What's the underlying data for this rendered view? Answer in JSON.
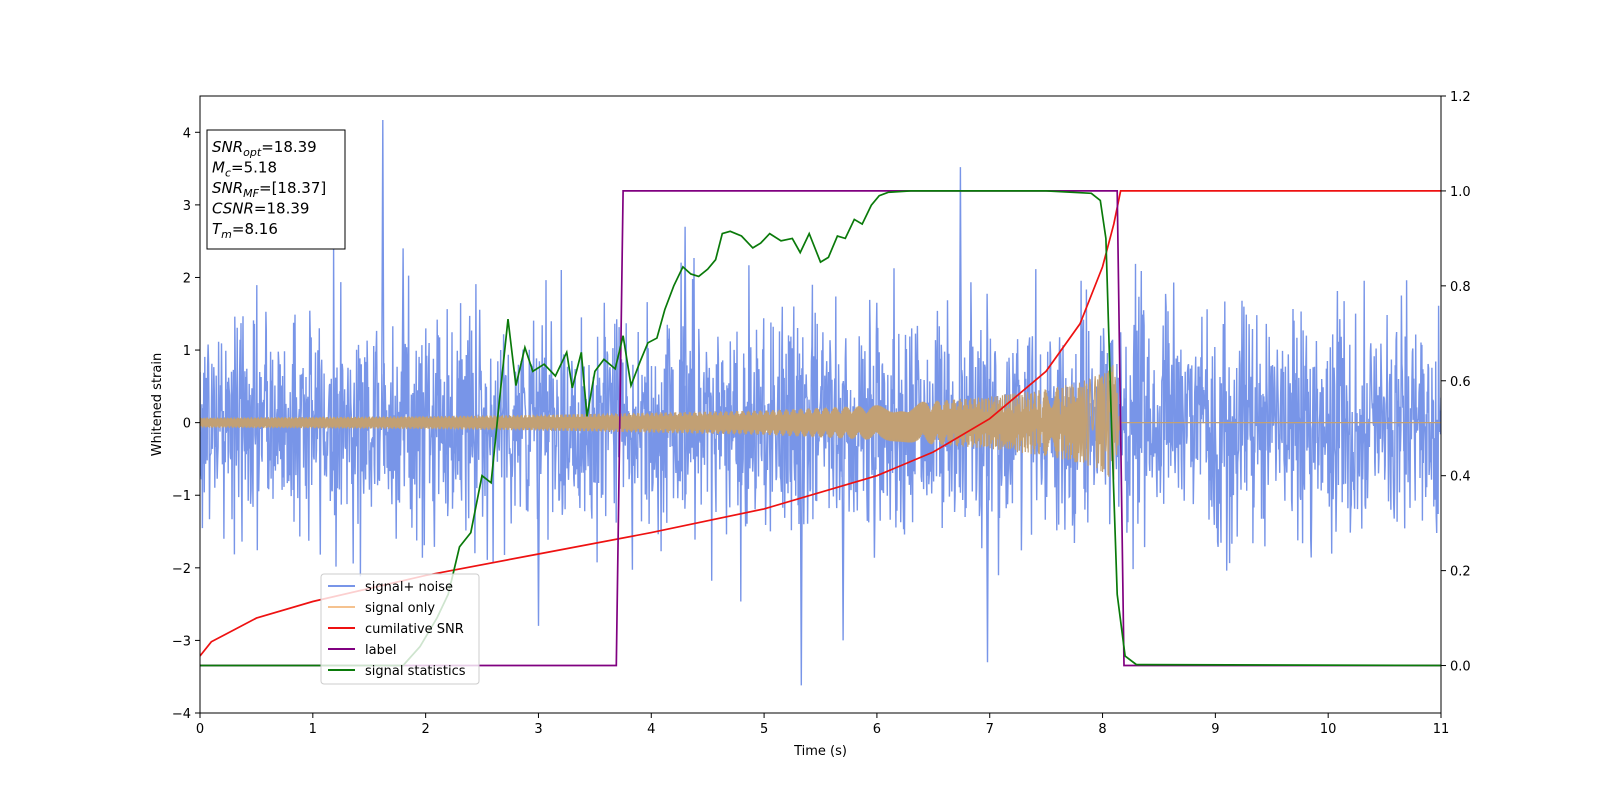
{
  "chart_data": {
    "type": "line",
    "xlabel": "Time (s)",
    "ylabel": "Whitened strain",
    "xlim": [
      0,
      11
    ],
    "ylim": [
      -4,
      4.5
    ],
    "y2lim": [
      -0.1,
      1.2
    ],
    "x_ticks": [
      "0",
      "1",
      "2",
      "3",
      "4",
      "5",
      "6",
      "7",
      "8",
      "9",
      "10",
      "11"
    ],
    "y_ticks": [
      "−4",
      "−3",
      "−2",
      "−1",
      "0",
      "1",
      "2",
      "3",
      "4"
    ],
    "y2_ticks": [
      "0.0",
      "0.2",
      "0.4",
      "0.6",
      "0.8",
      "1.0",
      "1.2"
    ],
    "grid": false,
    "legend_position": "lower-left",
    "info_box": [
      {
        "base": "SNR",
        "sub": "opt",
        "rest": "=18.39"
      },
      {
        "base": "M",
        "sub": "c",
        "rest": "=5.18"
      },
      {
        "base": "SNR",
        "sub": "MF",
        "rest": "=[18.37]"
      },
      {
        "base": "CSNR",
        "sub": "",
        "rest": "=18.39"
      },
      {
        "base": "T",
        "sub": "m",
        "rest": "=8.16"
      }
    ],
    "series": [
      {
        "name": "signal+ noise",
        "axis": "left",
        "color": "#7895e8",
        "kind": "noise",
        "sigma": 0.75,
        "x_range": [
          0,
          11
        ],
        "spikes": [
          [
            1.62,
            4.17
          ],
          [
            5.33,
            -3.62
          ],
          [
            6.74,
            3.52
          ],
          [
            5.7,
            -3.0
          ],
          [
            6.98,
            -3.3
          ],
          [
            3.0,
            -2.8
          ],
          [
            1.8,
            2.4
          ],
          [
            4.3,
            2.7
          ]
        ]
      },
      {
        "name": "signal only",
        "axis": "left",
        "color": "#c2a074",
        "kind": "chirp",
        "merger_time": 8.16,
        "points": [
          [
            0,
            0.07
          ],
          [
            1,
            0.08
          ],
          [
            2,
            0.09
          ],
          [
            3,
            0.11
          ],
          [
            4,
            0.14
          ],
          [
            5,
            0.17
          ],
          [
            6,
            0.24
          ],
          [
            7,
            0.36
          ],
          [
            7.5,
            0.46
          ],
          [
            7.8,
            0.56
          ],
          [
            8.0,
            0.68
          ],
          [
            8.1,
            0.8
          ],
          [
            8.16,
            0.0
          ],
          [
            11,
            0.0
          ]
        ]
      },
      {
        "name": "cumilative SNR",
        "axis": "right",
        "color": "#ee1111",
        "kind": "line",
        "points": [
          [
            0,
            0.02
          ],
          [
            0.1,
            0.05
          ],
          [
            0.5,
            0.1
          ],
          [
            1,
            0.135
          ],
          [
            2,
            0.19
          ],
          [
            3,
            0.235
          ],
          [
            4,
            0.28
          ],
          [
            5,
            0.33
          ],
          [
            6,
            0.4
          ],
          [
            6.5,
            0.45
          ],
          [
            7,
            0.52
          ],
          [
            7.5,
            0.62
          ],
          [
            7.8,
            0.72
          ],
          [
            8.0,
            0.84
          ],
          [
            8.1,
            0.93
          ],
          [
            8.16,
            1.0
          ],
          [
            11,
            1.0
          ]
        ]
      },
      {
        "name": "label",
        "axis": "right",
        "color": "#800080",
        "kind": "line",
        "points": [
          [
            0,
            0.0
          ],
          [
            3.69,
            0.0
          ],
          [
            3.75,
            1.0
          ],
          [
            8.13,
            1.0
          ],
          [
            8.19,
            0.0
          ],
          [
            11,
            0.0
          ]
        ]
      },
      {
        "name": "signal statistics",
        "axis": "right",
        "color": "#0a7a0a",
        "kind": "line",
        "points": [
          [
            0,
            0.0
          ],
          [
            1.8,
            0.0
          ],
          [
            1.95,
            0.04
          ],
          [
            2.1,
            0.1
          ],
          [
            2.2,
            0.15
          ],
          [
            2.3,
            0.25
          ],
          [
            2.4,
            0.28
          ],
          [
            2.5,
            0.4
          ],
          [
            2.58,
            0.385
          ],
          [
            2.65,
            0.55
          ],
          [
            2.73,
            0.73
          ],
          [
            2.8,
            0.59
          ],
          [
            2.88,
            0.67
          ],
          [
            2.95,
            0.62
          ],
          [
            3.05,
            0.635
          ],
          [
            3.15,
            0.61
          ],
          [
            3.25,
            0.66
          ],
          [
            3.3,
            0.585
          ],
          [
            3.38,
            0.66
          ],
          [
            3.43,
            0.525
          ],
          [
            3.5,
            0.62
          ],
          [
            3.58,
            0.645
          ],
          [
            3.68,
            0.625
          ],
          [
            3.75,
            0.695
          ],
          [
            3.82,
            0.59
          ],
          [
            3.9,
            0.64
          ],
          [
            3.97,
            0.68
          ],
          [
            4.05,
            0.69
          ],
          [
            4.12,
            0.75
          ],
          [
            4.2,
            0.8
          ],
          [
            4.28,
            0.84
          ],
          [
            4.35,
            0.825
          ],
          [
            4.42,
            0.82
          ],
          [
            4.5,
            0.835
          ],
          [
            4.57,
            0.855
          ],
          [
            4.63,
            0.91
          ],
          [
            4.7,
            0.915
          ],
          [
            4.8,
            0.905
          ],
          [
            4.9,
            0.88
          ],
          [
            4.97,
            0.89
          ],
          [
            5.05,
            0.91
          ],
          [
            5.15,
            0.895
          ],
          [
            5.25,
            0.9
          ],
          [
            5.32,
            0.87
          ],
          [
            5.4,
            0.91
          ],
          [
            5.5,
            0.85
          ],
          [
            5.57,
            0.86
          ],
          [
            5.65,
            0.905
          ],
          [
            5.72,
            0.9
          ],
          [
            5.8,
            0.94
          ],
          [
            5.87,
            0.93
          ],
          [
            5.95,
            0.97
          ],
          [
            6.02,
            0.99
          ],
          [
            6.1,
            0.997
          ],
          [
            6.3,
            1.0
          ],
          [
            7.0,
            1.0
          ],
          [
            7.5,
            1.0
          ],
          [
            7.9,
            0.995
          ],
          [
            7.98,
            0.98
          ],
          [
            8.03,
            0.9
          ],
          [
            8.08,
            0.5
          ],
          [
            8.13,
            0.15
          ],
          [
            8.2,
            0.02
          ],
          [
            8.3,
            0.002
          ],
          [
            11,
            0.0
          ]
        ]
      }
    ]
  }
}
